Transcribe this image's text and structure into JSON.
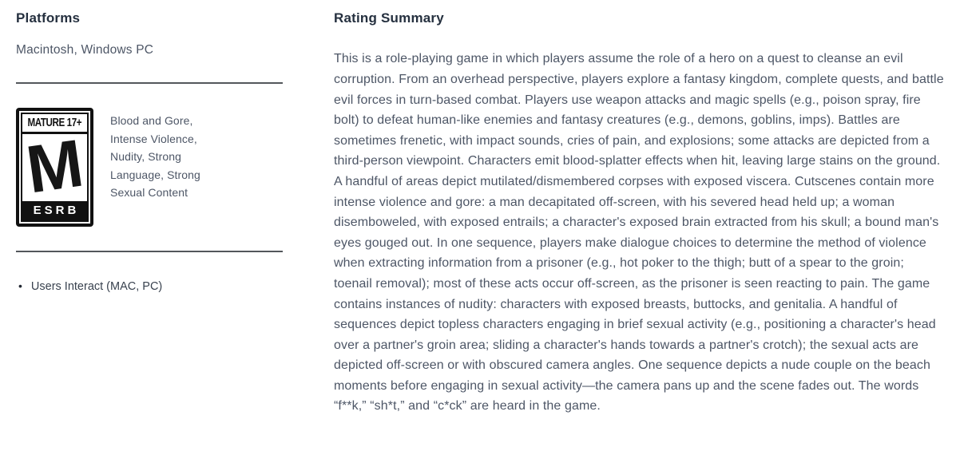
{
  "colors": {
    "heading_text": "#25303f",
    "body_text": "#4d5666",
    "divider": "#53575b",
    "icon_black": "#111111",
    "background": "#ffffff"
  },
  "left_panel": {
    "platforms": {
      "title": "Platforms",
      "value": "Macintosh, Windows PC"
    },
    "rating": {
      "icon": {
        "name": "esrb-mature-17-plus-icon",
        "category_label": "MATURE 17+",
        "letter": "M",
        "org": "ESRB"
      },
      "descriptors": "Blood and Gore, Intense Violence, Nudity, Strong Language, Strong Sexual Content"
    },
    "interactive_elements": [
      {
        "label": "Users Interact (MAC, PC)"
      }
    ]
  },
  "main": {
    "rating_summary": {
      "title": "Rating Summary",
      "body": "This is a role-playing game in which players assume the role of a hero on a quest to cleanse an evil corruption. From an overhead perspective, players explore a fantasy kingdom, complete quests, and battle evil forces in turn-based combat. Players use weapon attacks and magic spells (e.g., poison spray, fire bolt) to defeat human-like enemies and fantasy creatures (e.g., demons, goblins, imps). Battles are sometimes frenetic, with impact sounds, cries of pain, and explosions; some attacks are depicted from a third-person viewpoint. Characters emit blood-splatter effects when hit, leaving large stains on the ground. A handful of areas depict mutilated/dismembered corpses with exposed viscera. Cutscenes contain more intense violence and gore: a man decapitated off-screen, with his severed head held up; a woman disemboweled, with exposed entrails; a character's exposed brain extracted from his skull; a bound man's eyes gouged out. In one sequence, players make dialogue choices to determine the method of violence when extracting information from a prisoner (e.g., hot poker to the thigh; butt of a spear to the groin; toenail removal); most of these acts occur off-screen, as the prisoner is seen reacting to pain. The game contains instances of nudity: characters with exposed breasts, buttocks, and genitalia. A handful of sequences depict topless characters engaging in brief sexual activity (e.g., positioning a character's head over a partner's groin area; sliding a character's hands towards a partner's crotch); the sexual acts are depicted off-screen or with obscured camera angles. One sequence depicts a nude couple on the beach moments before engaging in sexual activity—the camera pans up and the scene fades out. The words “f**k,” “sh*t,” and “c*ck” are heard in the game."
    }
  }
}
